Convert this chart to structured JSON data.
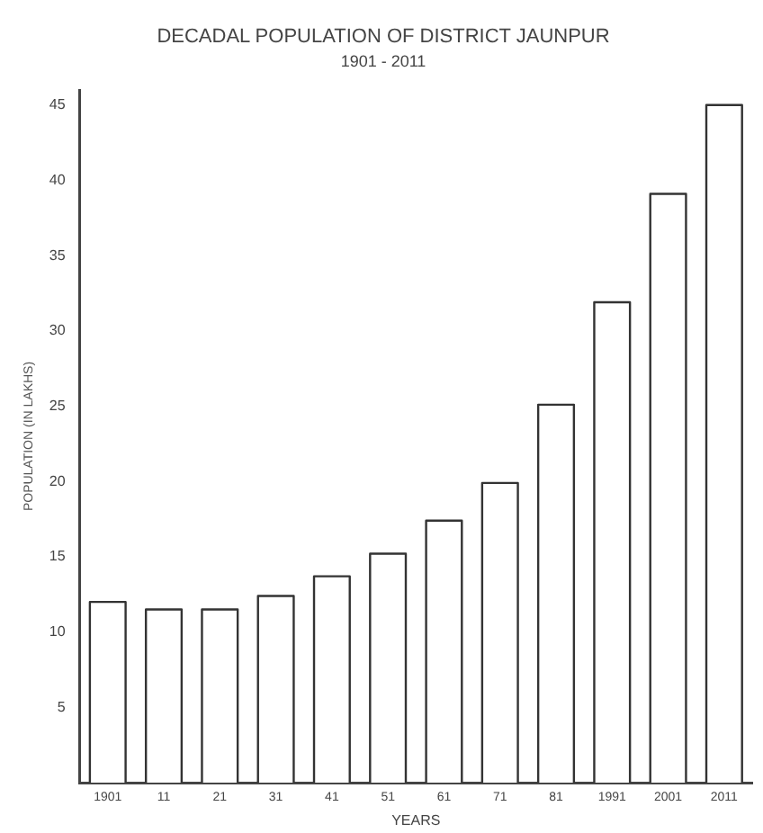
{
  "chart_data": {
    "type": "bar",
    "title": "DECADAL POPULATION OF DISTRICT JAUNPUR",
    "subtitle": "1901 - 2011",
    "xlabel": "YEARS",
    "ylabel": "POPULATION (IN LAKHS)",
    "categories": [
      "1901",
      "11",
      "21",
      "31",
      "41",
      "51",
      "61",
      "71",
      "81",
      "1991",
      "2001",
      "2011"
    ],
    "values": [
      12.0,
      11.5,
      11.5,
      12.4,
      13.7,
      15.2,
      17.4,
      19.9,
      25.1,
      31.9,
      39.1,
      45.0
    ],
    "color": "#ffffff",
    "ylim": [
      0,
      46
    ],
    "yticks": [
      5,
      10,
      15,
      20,
      25,
      30,
      35,
      40,
      45
    ],
    "grid": false,
    "legend": false
  }
}
